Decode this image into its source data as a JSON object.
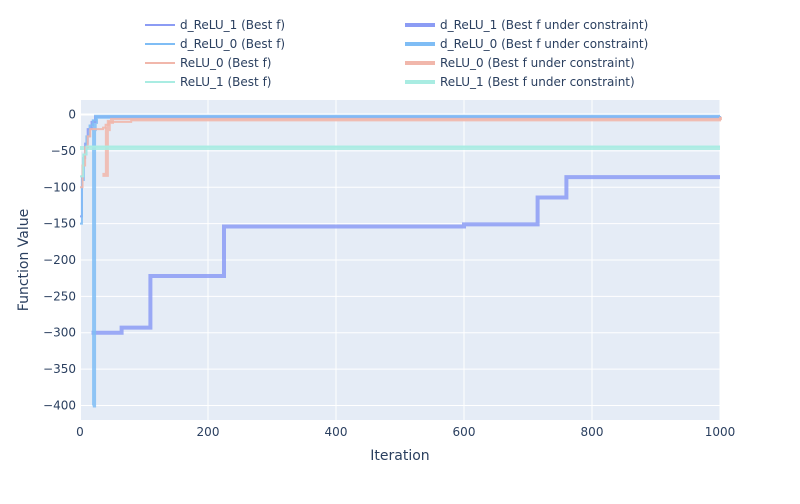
{
  "chart_data": {
    "type": "line",
    "title": "",
    "xlabel": "Iteration",
    "ylabel": "Function Value",
    "xlim": [
      0,
      1000
    ],
    "ylim": [
      -420,
      20
    ],
    "xticks": [
      0,
      200,
      400,
      600,
      800,
      1000
    ],
    "yticks": [
      0,
      -50,
      -100,
      -150,
      -200,
      -250,
      -300,
      -350,
      -400
    ],
    "xtick_labels": [
      "0",
      "200",
      "400",
      "600",
      "800",
      "1000"
    ],
    "ytick_labels": [
      "0",
      "−50",
      "−100",
      "−150",
      "−200",
      "−250",
      "−300",
      "−350",
      "−400"
    ],
    "grid": true,
    "legend_position": "top",
    "series": [
      {
        "name": "d_ReLU_1 (Best f)",
        "style": "thin",
        "color": "#8c9cf4",
        "x": [
          0,
          3,
          5,
          8,
          12,
          18,
          24,
          1000
        ],
        "y": [
          -140,
          -85,
          -60,
          -40,
          -20,
          -10,
          -3,
          -2
        ]
      },
      {
        "name": "d_ReLU_0 (Best f)",
        "style": "thin",
        "color": "#7fbdf5",
        "x": [
          0,
          3,
          6,
          10,
          15,
          20,
          25,
          1000
        ],
        "y": [
          -150,
          -90,
          -55,
          -30,
          -15,
          -8,
          -3,
          -2
        ]
      },
      {
        "name": "ReLU_0 (Best f)",
        "style": "thin",
        "color": "#f1b7ab",
        "x": [
          0,
          4,
          8,
          12,
          16,
          20,
          36,
          40,
          45,
          80,
          1000
        ],
        "y": [
          -100,
          -70,
          -45,
          -30,
          -20,
          -20,
          -18,
          -14,
          -10,
          -8,
          -3
        ]
      },
      {
        "name": "ReLU_1 (Best f)",
        "style": "thin",
        "color": "#a9ece2",
        "x": [
          0,
          5,
          10,
          1000
        ],
        "y": [
          -85,
          -55,
          -44,
          -44
        ]
      },
      {
        "name": "d_ReLU_1 (Best f under constraint)",
        "style": "thick",
        "color": "#8c9cf4",
        "x": [
          18,
          65,
          110,
          225,
          600,
          715,
          760,
          1000
        ],
        "y": [
          -300,
          -293,
          -222,
          -154,
          -151,
          -114,
          -86,
          -86
        ]
      },
      {
        "name": "d_ReLU_0 (Best f under constraint)",
        "style": "thick",
        "color": "#7fbdf5",
        "x": [
          20,
          22,
          23,
          25,
          1000
        ],
        "y": [
          -400,
          -20,
          -10,
          -3,
          -3
        ]
      },
      {
        "name": "ReLU_0 (Best f under constraint)",
        "style": "thick",
        "color": "#f1b7ab",
        "x": [
          35,
          42,
          45,
          50,
          1000
        ],
        "y": [
          -83,
          -20,
          -10,
          -5,
          -3
        ]
      },
      {
        "name": "ReLU_1 (Best f under constraint)",
        "style": "thick",
        "color": "#a9ece2",
        "x": [
          0,
          1000
        ],
        "y": [
          -46,
          -46
        ]
      }
    ]
  }
}
